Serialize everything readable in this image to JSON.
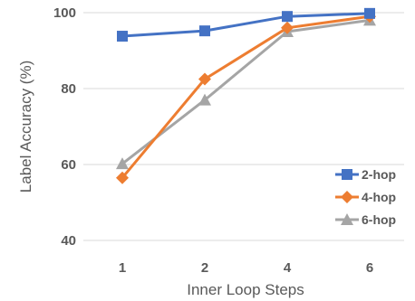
{
  "chart_data": {
    "type": "line",
    "title": "",
    "xlabel": "Inner Loop Steps",
    "ylabel": "Label Accuracy (%)",
    "categories": [
      "1",
      "2",
      "4",
      "6"
    ],
    "ylim": [
      40,
      100
    ],
    "yticks": [
      "40",
      "60",
      "80",
      "100"
    ],
    "grid": "horizontal",
    "legend_position": "bottom-right",
    "series": [
      {
        "name": "2-hop",
        "color": "#4472C4",
        "marker": "square",
        "values": [
          93.8,
          95.2,
          99.0,
          99.8
        ]
      },
      {
        "name": "4-hop",
        "color": "#ED7D31",
        "marker": "diamond",
        "values": [
          56.5,
          82.5,
          96.0,
          99.0
        ]
      },
      {
        "name": "6-hop",
        "color": "#A5A5A5",
        "marker": "triangle",
        "values": [
          60.2,
          77.0,
          95.0,
          98.0
        ]
      }
    ]
  }
}
